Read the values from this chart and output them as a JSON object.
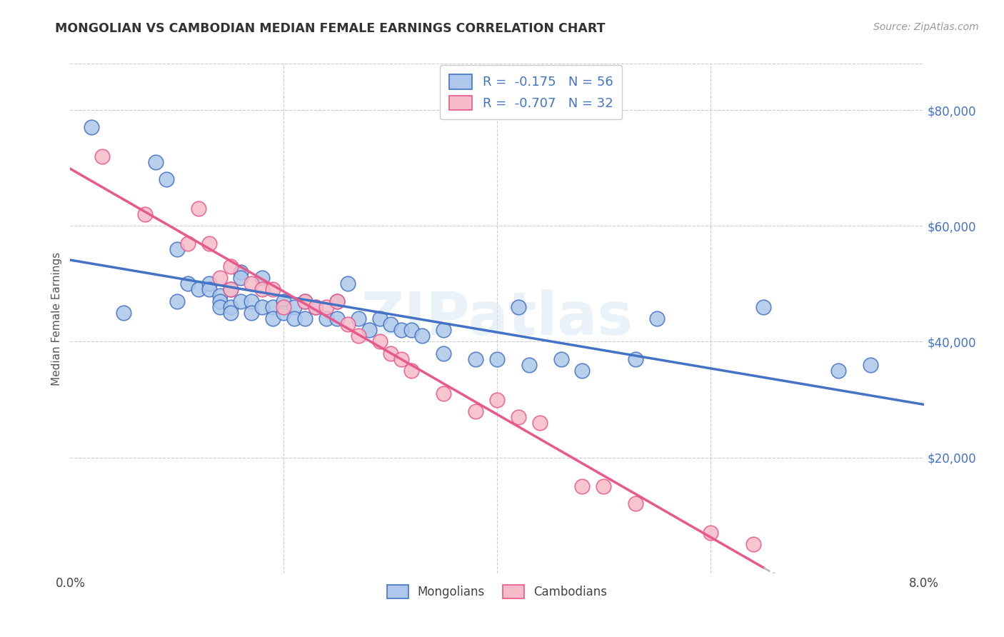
{
  "title": "MONGOLIAN VS CAMBODIAN MEDIAN FEMALE EARNINGS CORRELATION CHART",
  "source": "Source: ZipAtlas.com",
  "ylabel": "Median Female Earnings",
  "watermark": "ZIPatlas",
  "background_color": "#ffffff",
  "grid_color": "#cccccc",
  "xlim": [
    0.0,
    0.08
  ],
  "ylim": [
    0,
    88000
  ],
  "yticks": [
    20000,
    40000,
    60000,
    80000
  ],
  "xticks": [
    0.0,
    0.02,
    0.04,
    0.06,
    0.08
  ],
  "xtick_labels": [
    "0.0%",
    "",
    "",
    "",
    "8.0%"
  ],
  "mongolian_color": "#adc8ea",
  "cambodian_color": "#f5bbc8",
  "mongolian_line_color": "#4472c4",
  "cambodian_line_color": "#e8588a",
  "trend_extend_color": "#bbbbbb",
  "legend_mongolian_label": "R =  -0.175   N = 56",
  "legend_cambodian_label": "R =  -0.707   N = 32",
  "legend_bottom_mongolian": "Mongolians",
  "legend_bottom_cambodian": "Cambodians",
  "mongolian_x": [
    0.002,
    0.005,
    0.008,
    0.009,
    0.01,
    0.01,
    0.011,
    0.012,
    0.013,
    0.013,
    0.014,
    0.014,
    0.014,
    0.015,
    0.015,
    0.015,
    0.016,
    0.016,
    0.016,
    0.017,
    0.017,
    0.018,
    0.018,
    0.019,
    0.019,
    0.02,
    0.02,
    0.021,
    0.021,
    0.022,
    0.022,
    0.023,
    0.024,
    0.025,
    0.025,
    0.026,
    0.027,
    0.028,
    0.029,
    0.03,
    0.031,
    0.032,
    0.033,
    0.035,
    0.035,
    0.038,
    0.04,
    0.042,
    0.043,
    0.046,
    0.048,
    0.053,
    0.055,
    0.065,
    0.072,
    0.075
  ],
  "mongolian_y": [
    77000,
    45000,
    71000,
    68000,
    56000,
    47000,
    50000,
    49000,
    50000,
    49000,
    48000,
    47000,
    46000,
    49000,
    46000,
    45000,
    52000,
    51000,
    47000,
    47000,
    45000,
    51000,
    46000,
    46000,
    44000,
    47000,
    45000,
    46000,
    44000,
    47000,
    44000,
    46000,
    44000,
    47000,
    44000,
    50000,
    44000,
    42000,
    44000,
    43000,
    42000,
    42000,
    41000,
    42000,
    38000,
    37000,
    37000,
    46000,
    36000,
    37000,
    35000,
    37000,
    44000,
    46000,
    35000,
    36000
  ],
  "cambodian_x": [
    0.003,
    0.007,
    0.011,
    0.012,
    0.013,
    0.014,
    0.015,
    0.015,
    0.017,
    0.018,
    0.019,
    0.02,
    0.022,
    0.023,
    0.024,
    0.025,
    0.026,
    0.027,
    0.029,
    0.03,
    0.031,
    0.032,
    0.035,
    0.038,
    0.04,
    0.042,
    0.044,
    0.048,
    0.05,
    0.053,
    0.06,
    0.064
  ],
  "cambodian_y": [
    72000,
    62000,
    57000,
    63000,
    57000,
    51000,
    53000,
    49000,
    50000,
    49000,
    49000,
    46000,
    47000,
    46000,
    46000,
    47000,
    43000,
    41000,
    40000,
    38000,
    37000,
    35000,
    31000,
    28000,
    30000,
    27000,
    26000,
    15000,
    15000,
    12000,
    7000,
    5000
  ]
}
